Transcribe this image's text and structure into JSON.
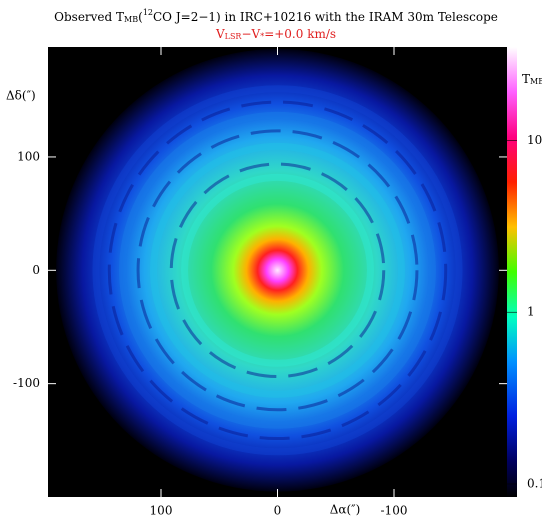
{
  "chart_data": {
    "type": "image",
    "title": [
      "Observed T",
      "MB",
      "(",
      "12",
      "CO J=2−1) in IRC+10216 with the IRAM 30m Telescope"
    ],
    "subtitle": [
      "V",
      "LSR",
      "−V",
      "*",
      "=+0.0 km/s"
    ],
    "x_label": "Δα(″)",
    "y_label": "Δδ(″)",
    "colorbar_label": [
      "T",
      "MB"
    ],
    "xlim": [
      197,
      -197
    ],
    "xticks": [
      100,
      0,
      -100
    ],
    "ylim": [
      -200,
      197
    ],
    "yticks": [
      100,
      0,
      -100
    ],
    "clim": [
      0.084,
      35
    ],
    "cticks": [
      10,
      1,
      0.1
    ],
    "colorbar_scale": "log"
  }
}
